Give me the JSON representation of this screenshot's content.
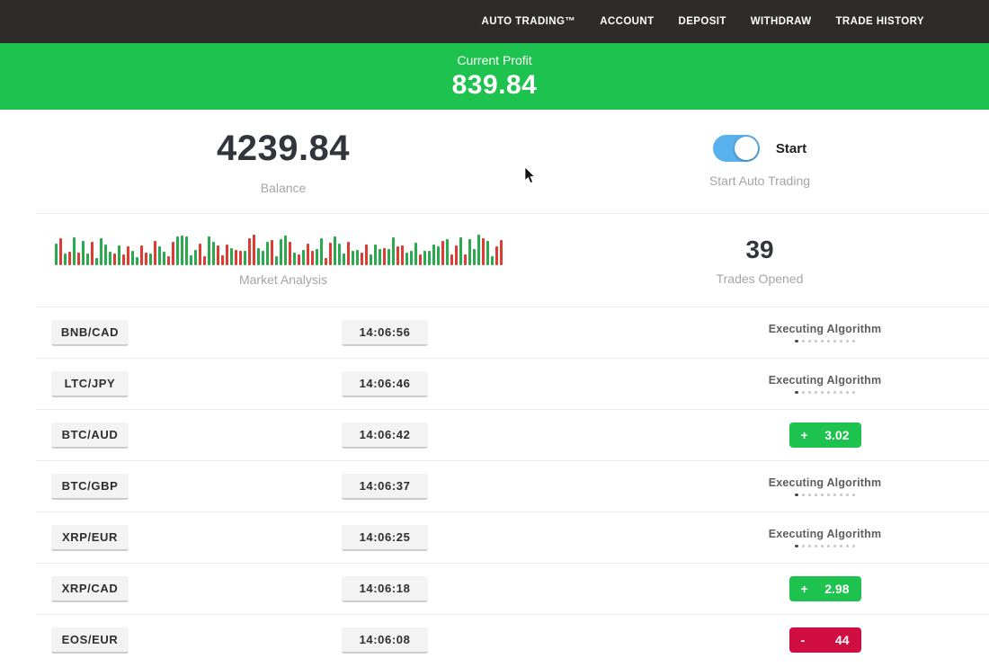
{
  "nav": {
    "items": [
      {
        "label": "AUTO TRADING™"
      },
      {
        "label": "ACCOUNT"
      },
      {
        "label": "DEPOSIT"
      },
      {
        "label": "WITHDRAW"
      },
      {
        "label": "TRADE HISTORY"
      }
    ]
  },
  "profit_banner": {
    "label": "Current Profit",
    "value": "839.84"
  },
  "summary": {
    "balance_value": "4239.84",
    "balance_label": "Balance",
    "toggle_label": "Start",
    "toggle_caption": "Start Auto Trading",
    "toggle_on": true,
    "trades_opened_value": "39",
    "trades_opened_label": "Trades Opened",
    "market_analysis_label": "Market Analysis"
  },
  "chart_data": {
    "type": "bar",
    "title": "Market Analysis",
    "description": "decorative mini candlestick strip of alternating green/red bars",
    "bar_count": 100,
    "bar_height_range": [
      8,
      34
    ],
    "seed": 42
  },
  "trades": [
    {
      "pair": "BNB/CAD",
      "time": "14:06:56",
      "status": "executing",
      "status_label": "Executing Algorithm"
    },
    {
      "pair": "LTC/JPY",
      "time": "14:06:46",
      "status": "executing",
      "status_label": "Executing Algorithm"
    },
    {
      "pair": "BTC/AUD",
      "time": "14:06:42",
      "status": "profit",
      "sign": "+",
      "amount": "3.02"
    },
    {
      "pair": "BTC/GBP",
      "time": "14:06:37",
      "status": "executing",
      "status_label": "Executing Algorithm"
    },
    {
      "pair": "XRP/EUR",
      "time": "14:06:25",
      "status": "executing",
      "status_label": "Executing Algorithm"
    },
    {
      "pair": "XRP/CAD",
      "time": "14:06:18",
      "status": "profit",
      "sign": "+",
      "amount": "2.98"
    },
    {
      "pair": "EOS/EUR",
      "time": "14:06:08",
      "status": "loss",
      "sign": "-",
      "amount": "44"
    }
  ],
  "colors": {
    "banner_green": "#1ec24f",
    "profit_badge": "#1ec24f",
    "loss_badge": "#d10e41",
    "toggle_blue": "#58b0ed",
    "bar_up": "#2aa94f",
    "bar_down": "#dd3c32",
    "nav_bg": "#2d2c2b"
  }
}
